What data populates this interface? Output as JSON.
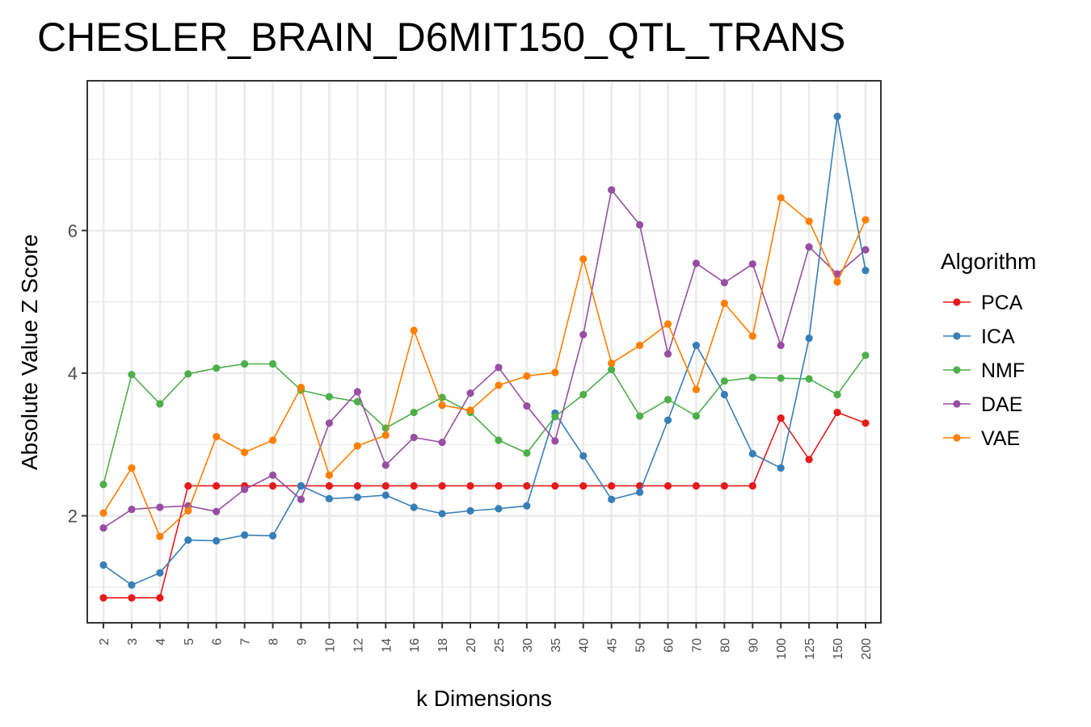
{
  "chart_data": {
    "type": "line",
    "title": "CHESLER_BRAIN_D6MIT150_QTL_TRANS",
    "xlabel": "k Dimensions",
    "ylabel": "Absolute Value Z Score",
    "categories": [
      "2",
      "3",
      "4",
      "5",
      "6",
      "7",
      "8",
      "9",
      "10",
      "12",
      "14",
      "16",
      "18",
      "20",
      "25",
      "30",
      "35",
      "40",
      "45",
      "50",
      "60",
      "70",
      "80",
      "90",
      "100",
      "125",
      "150",
      "200"
    ],
    "ylim": [
      0.5,
      8.1
    ],
    "yticks": [
      2,
      4,
      6
    ],
    "grid": true,
    "legend": {
      "title": "Algorithm",
      "position": "right"
    },
    "series": [
      {
        "name": "PCA",
        "color": "#e41a1c",
        "values": [
          0.85,
          0.85,
          0.85,
          2.42,
          2.42,
          2.42,
          2.42,
          2.42,
          2.42,
          2.42,
          2.42,
          2.42,
          2.42,
          2.42,
          2.42,
          2.42,
          2.42,
          2.42,
          2.42,
          2.42,
          2.42,
          2.42,
          2.42,
          2.42,
          3.37,
          2.79,
          3.45,
          3.3
        ]
      },
      {
        "name": "ICA",
        "color": "#377eb8",
        "values": [
          1.31,
          1.03,
          1.2,
          1.66,
          1.65,
          1.73,
          1.72,
          2.42,
          2.24,
          2.26,
          2.29,
          2.12,
          2.03,
          2.07,
          2.1,
          2.14,
          3.44,
          2.84,
          2.23,
          2.33,
          3.34,
          4.39,
          3.7,
          2.87,
          2.67,
          4.49,
          7.6,
          5.44
        ]
      },
      {
        "name": "NMF",
        "color": "#4daf4a",
        "values": [
          2.44,
          3.98,
          3.57,
          3.99,
          4.07,
          4.13,
          4.13,
          3.76,
          3.67,
          3.6,
          3.23,
          3.45,
          3.66,
          3.45,
          3.06,
          2.88,
          3.39,
          3.7,
          4.05,
          3.4,
          3.63,
          3.4,
          3.89,
          3.94,
          3.93,
          3.92,
          3.7,
          4.25
        ]
      },
      {
        "name": "DAE",
        "color": "#984ea3",
        "values": [
          1.83,
          2.09,
          2.12,
          2.14,
          2.06,
          2.37,
          2.57,
          2.23,
          3.3,
          3.74,
          2.71,
          3.1,
          3.03,
          3.72,
          4.08,
          3.54,
          3.05,
          4.54,
          6.57,
          6.08,
          4.27,
          5.54,
          5.27,
          5.53,
          4.39,
          5.77,
          5.39,
          5.73
        ]
      },
      {
        "name": "VAE",
        "color": "#ff7f00",
        "values": [
          2.04,
          2.67,
          1.71,
          2.07,
          3.11,
          2.89,
          3.06,
          3.8,
          2.57,
          2.98,
          3.13,
          4.6,
          3.55,
          3.48,
          3.83,
          3.96,
          4.01,
          5.6,
          4.14,
          4.39,
          4.69,
          3.77,
          4.98,
          4.52,
          6.46,
          6.13,
          5.28,
          6.15
        ]
      }
    ]
  }
}
